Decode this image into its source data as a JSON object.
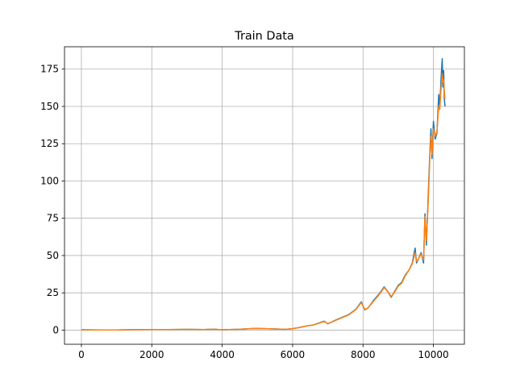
{
  "chart_data": {
    "type": "line",
    "title": "Train Data",
    "xlabel": "",
    "ylabel": "",
    "xlim": [
      -480,
      10880
    ],
    "ylim": [
      -9.5,
      190
    ],
    "x_ticks": [
      0,
      2000,
      4000,
      6000,
      8000,
      10000
    ],
    "y_ticks": [
      0,
      25,
      50,
      75,
      100,
      125,
      150,
      175
    ],
    "grid": true,
    "colors": [
      "#1f77b4",
      "#ff7f0e"
    ],
    "series": [
      {
        "color": "#1f77b4",
        "x": [
          0,
          500,
          1000,
          1500,
          2000,
          2500,
          3000,
          3500,
          3800,
          4000,
          4200,
          4500,
          4800,
          5000,
          5500,
          5800,
          6000,
          6200,
          6400,
          6600,
          6750,
          6900,
          7000,
          7200,
          7400,
          7600,
          7800,
          7950,
          8050,
          8150,
          8300,
          8450,
          8600,
          8700,
          8800,
          8900,
          9000,
          9100,
          9200,
          9300,
          9400,
          9480,
          9520,
          9580,
          9650,
          9720,
          9760,
          9800,
          9860,
          9900,
          9930,
          9960,
          10000,
          10050,
          10100,
          10150,
          10180,
          10220,
          10250,
          10270,
          10290,
          10310,
          10330
        ],
        "values": [
          0.2,
          0.1,
          0.1,
          0.3,
          0.4,
          0.4,
          0.5,
          0.4,
          0.6,
          0.2,
          0.4,
          0.6,
          1.0,
          1.1,
          0.8,
          0.5,
          1.0,
          1.8,
          2.8,
          3.5,
          4.8,
          6.0,
          4.2,
          6.5,
          8.5,
          10.5,
          14.0,
          19.0,
          13.5,
          15.0,
          20.0,
          24.0,
          29.0,
          26.0,
          22.0,
          26.0,
          30.0,
          32.0,
          37.0,
          40.0,
          45.0,
          55.0,
          45.0,
          48.0,
          52.0,
          45.0,
          78.0,
          57.0,
          95.0,
          120.0,
          135.0,
          115.0,
          140.0,
          128.0,
          132.0,
          158.0,
          150.0,
          170.0,
          182.0,
          163.0,
          174.0,
          155.0,
          150.0
        ]
      },
      {
        "color": "#ff7f0e",
        "x": [
          0,
          500,
          1000,
          1500,
          2000,
          2500,
          3000,
          3500,
          3800,
          4000,
          4200,
          4500,
          4800,
          5000,
          5500,
          5800,
          6000,
          6200,
          6400,
          6600,
          6750,
          6900,
          7000,
          7200,
          7400,
          7600,
          7800,
          7950,
          8050,
          8150,
          8300,
          8450,
          8600,
          8700,
          8800,
          8900,
          9000,
          9100,
          9200,
          9300,
          9400,
          9480,
          9520,
          9580,
          9650,
          9720,
          9760,
          9800,
          9860,
          9900,
          9930,
          9960,
          10000,
          10050,
          10100,
          10150,
          10180,
          10220,
          10250,
          10270,
          10290,
          10310,
          10330
        ],
        "values": [
          0.2,
          0.1,
          0.1,
          0.3,
          0.4,
          0.4,
          0.5,
          0.4,
          0.6,
          0.2,
          0.4,
          0.6,
          1.0,
          1.1,
          0.8,
          0.5,
          1.0,
          1.8,
          2.8,
          3.5,
          4.6,
          5.8,
          4.3,
          6.3,
          8.3,
          10.3,
          13.8,
          18.5,
          13.8,
          15.0,
          19.5,
          23.5,
          28.5,
          26.0,
          22.5,
          25.5,
          29.5,
          31.5,
          36.5,
          40.0,
          44.5,
          52.0,
          46.0,
          48.0,
          51.0,
          47.0,
          76.0,
          60.0,
          90.0,
          118.0,
          130.0,
          118.0,
          135.0,
          130.0,
          133.0,
          150.0,
          148.0,
          163.0,
          172.0,
          166.0,
          168.0,
          160.0,
          155.0
        ]
      }
    ]
  }
}
